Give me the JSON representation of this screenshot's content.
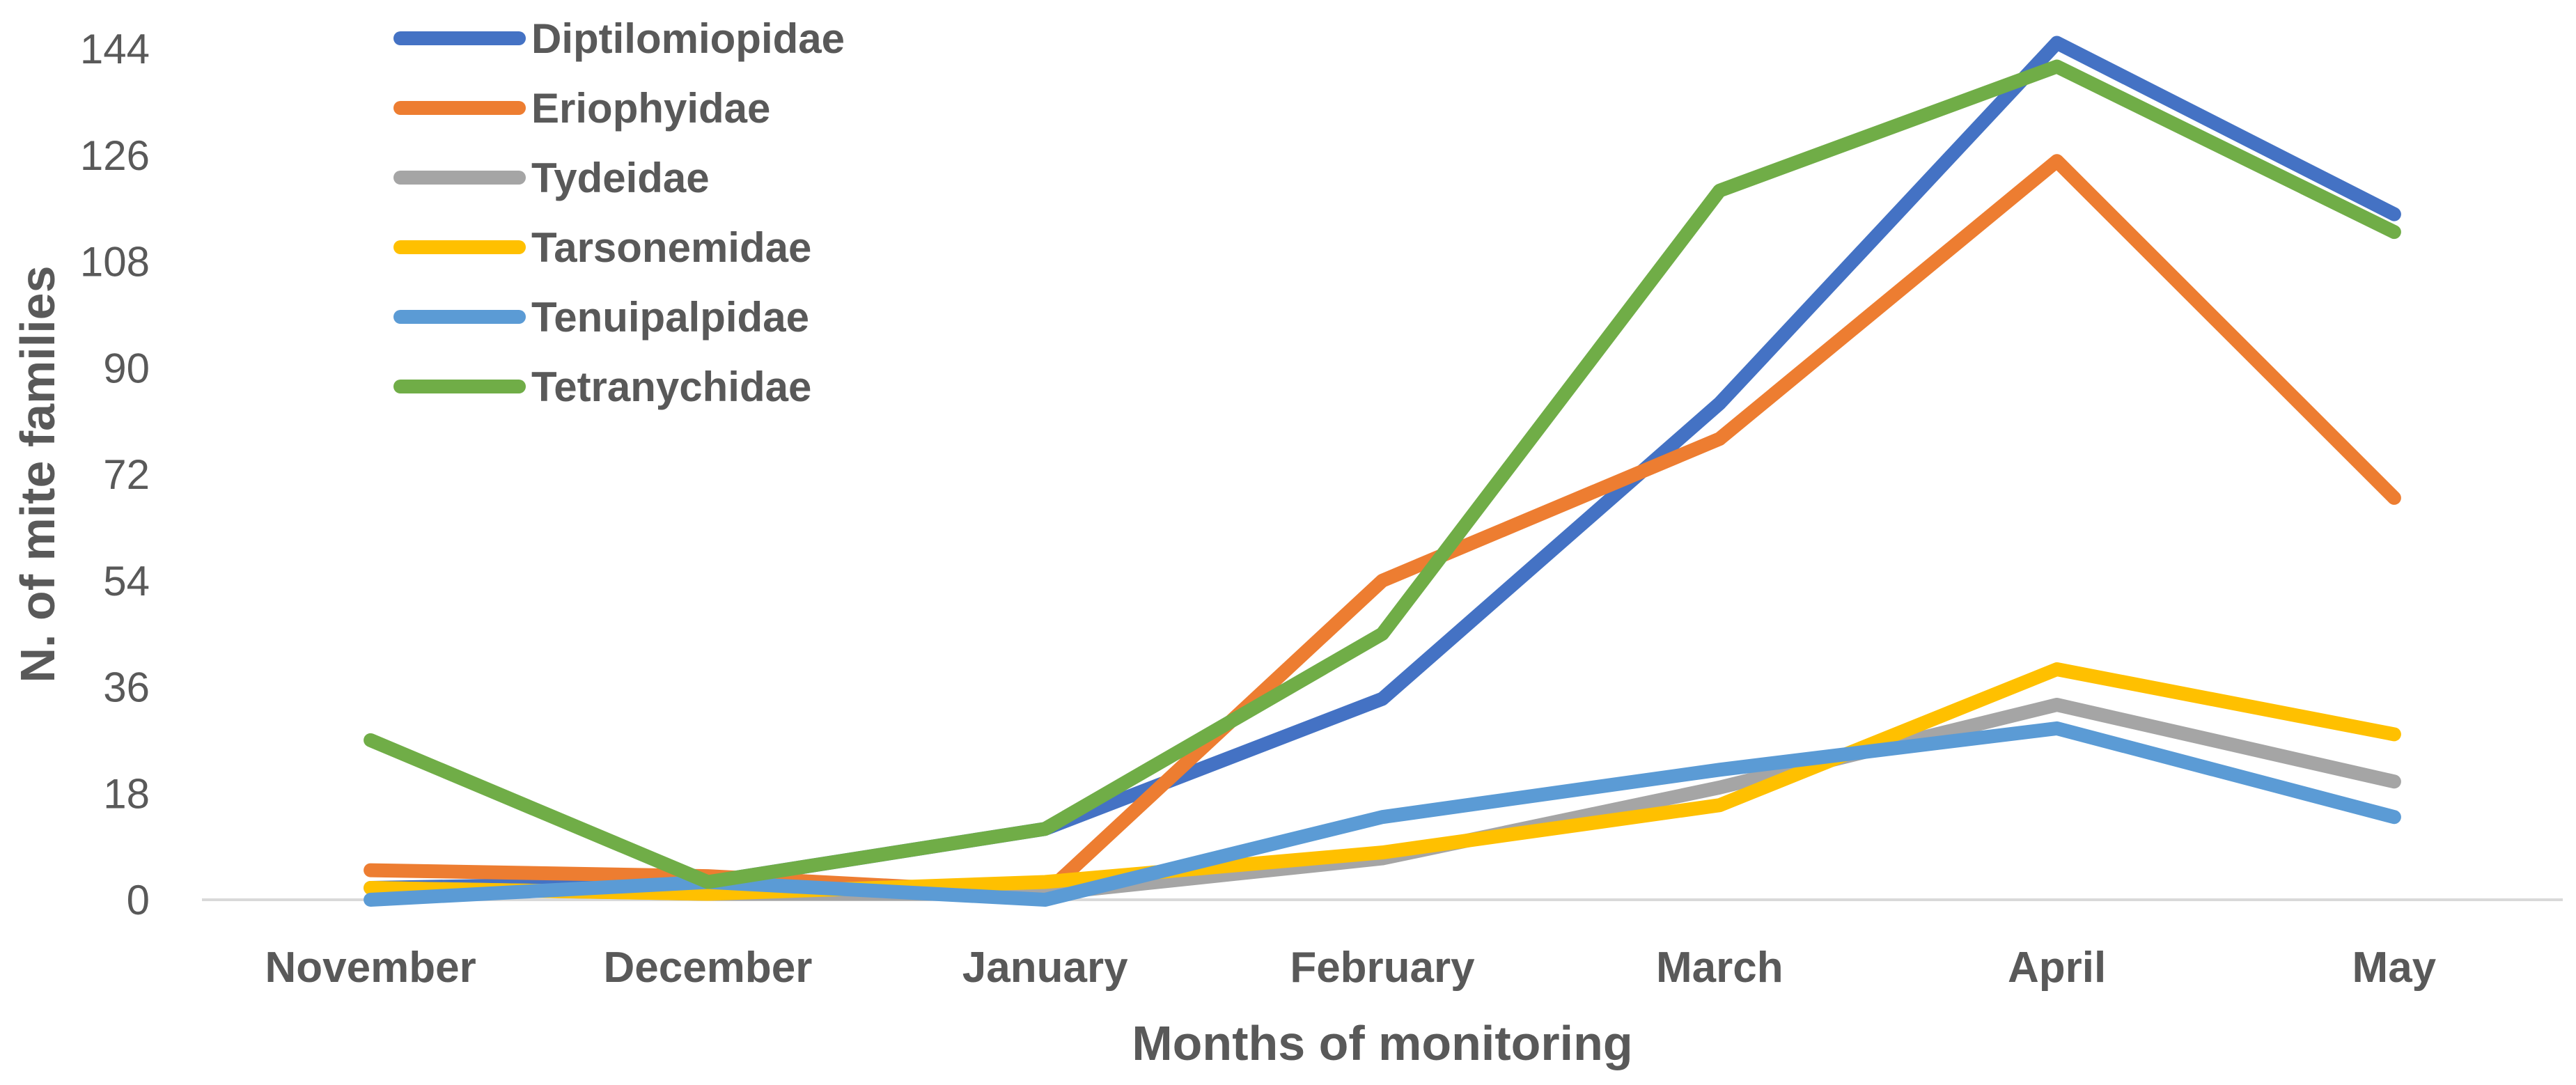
{
  "chart_data": {
    "type": "line",
    "title": "",
    "xlabel": "Months of monitoring",
    "ylabel": "N. of mite families",
    "categories": [
      "November",
      "December",
      "January",
      "February",
      "March",
      "April",
      "May"
    ],
    "ylim": [
      0,
      144
    ],
    "yticks": [
      0,
      18,
      36,
      54,
      72,
      90,
      108,
      126,
      144
    ],
    "grid": false,
    "legend_position": "top-left",
    "series": [
      {
        "name": "Diptilomiopidae",
        "color": "#4472C4",
        "values": [
          2,
          3,
          12,
          34,
          84,
          145,
          116
        ]
      },
      {
        "name": "Eriophyidae",
        "color": "#ED7D31",
        "values": [
          5,
          4,
          1,
          54,
          78,
          125,
          68
        ]
      },
      {
        "name": "Tydeidae",
        "color": "#A5A5A5",
        "values": [
          2,
          1,
          1,
          7,
          19,
          33,
          20
        ]
      },
      {
        "name": "Tarsonemidae",
        "color": "#FFC000",
        "values": [
          2,
          1,
          3,
          8,
          16,
          39,
          28
        ]
      },
      {
        "name": "Tenuipalpidae",
        "color": "#5B9BD5",
        "values": [
          0,
          3,
          0,
          14,
          22,
          29,
          14
        ]
      },
      {
        "name": "Tetranychidae",
        "color": "#70AD47",
        "values": [
          27,
          3,
          12,
          45,
          120,
          141,
          113
        ]
      }
    ]
  }
}
